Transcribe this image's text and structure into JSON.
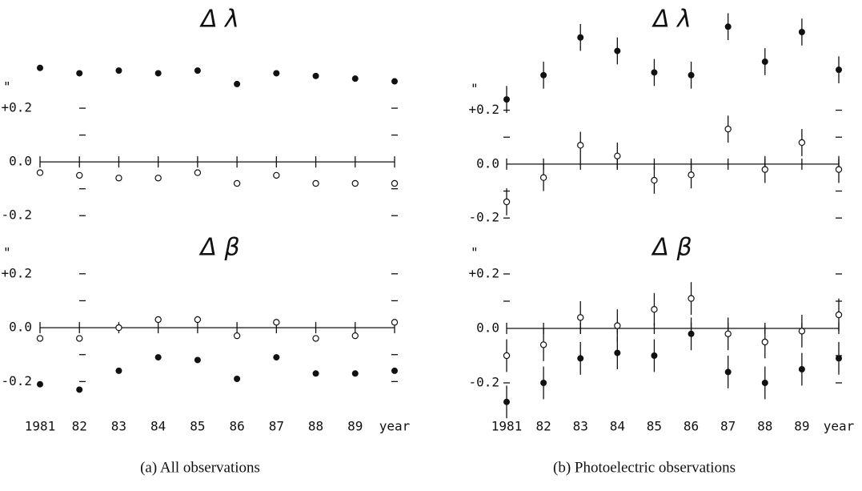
{
  "chart_data": [
    {
      "type": "scatter",
      "title": "Δ λ",
      "yunit": "\"",
      "x": [
        1981,
        1982,
        1983,
        1984,
        1985,
        1986,
        1987,
        1988,
        1989,
        1990
      ],
      "xlim": [
        1981,
        1990
      ],
      "xticks": [
        1981,
        1982,
        1983,
        1984,
        1985,
        1986,
        1987,
        1988,
        1989,
        1990
      ],
      "ylim": [
        -0.25,
        0.4
      ],
      "yticks": [
        -0.2,
        {
          "value": 0,
          "label": "0.0"
        },
        {
          "value": 0.2,
          "label": "+0.2"
        }
      ],
      "minor_yticks": [
        -0.1,
        0.1
      ],
      "series": [
        {
          "marker": "filled",
          "color": "#111",
          "values": [
            0.35,
            0.33,
            0.34,
            0.33,
            0.34,
            0.29,
            0.33,
            0.32,
            0.31,
            0.3
          ]
        },
        {
          "marker": "open",
          "color": "#111",
          "values": [
            -0.04,
            -0.05,
            -0.06,
            -0.06,
            -0.04,
            -0.08,
            -0.05,
            -0.08,
            -0.08,
            -0.08
          ]
        }
      ]
    },
    {
      "type": "scatter",
      "title": "Δ β",
      "yunit": "\"",
      "x": [
        1981,
        1982,
        1983,
        1984,
        1985,
        1986,
        1987,
        1988,
        1989,
        1990
      ],
      "xlim": [
        1981,
        1990
      ],
      "xticks": [
        {
          "value": 1981,
          "label": "1981"
        },
        {
          "value": 1982,
          "label": "82"
        },
        {
          "value": 1983,
          "label": "83"
        },
        {
          "value": 1984,
          "label": "84"
        },
        {
          "value": 1985,
          "label": "85"
        },
        {
          "value": 1986,
          "label": "86"
        },
        {
          "value": 1987,
          "label": "87"
        },
        {
          "value": 1988,
          "label": "88"
        },
        {
          "value": 1989,
          "label": "89"
        },
        {
          "value": 1990,
          "label": "year"
        }
      ],
      "ylim": [
        -0.3,
        0.25
      ],
      "yticks": [
        -0.2,
        {
          "value": 0,
          "label": "0.0"
        },
        {
          "value": 0.2,
          "label": "+0.2"
        }
      ],
      "minor_yticks": [
        -0.1,
        0.1
      ],
      "series": [
        {
          "marker": "open",
          "color": "#111",
          "values": [
            -0.04,
            -0.04,
            0.0,
            0.03,
            0.03,
            -0.03,
            0.02,
            -0.04,
            -0.03,
            0.02
          ]
        },
        {
          "marker": "filled",
          "color": "#111",
          "values": [
            -0.21,
            -0.23,
            -0.16,
            -0.11,
            -0.12,
            -0.19,
            -0.11,
            -0.17,
            -0.17,
            -0.16
          ]
        }
      ]
    },
    {
      "type": "scatter",
      "title": "Δ λ",
      "yunit": "\"",
      "x": [
        1981,
        1982,
        1983,
        1984,
        1985,
        1986,
        1987,
        1988,
        1989,
        1990
      ],
      "xlim": [
        1981,
        1990
      ],
      "xticks": [
        1981,
        1982,
        1983,
        1984,
        1985,
        1986,
        1987,
        1988,
        1989,
        1990
      ],
      "ylim": [
        -0.25,
        0.6
      ],
      "yticks": [
        -0.2,
        {
          "value": 0,
          "label": "0.0"
        },
        {
          "value": 0.2,
          "label": "+0.2"
        }
      ],
      "minor_yticks": [
        -0.1,
        0.1
      ],
      "series": [
        {
          "marker": "filled",
          "color": "#111",
          "values": [
            0.24,
            0.33,
            0.47,
            0.42,
            0.34,
            0.33,
            0.51,
            0.38,
            0.49,
            0.35
          ],
          "errors": [
            0.05,
            0.05,
            0.05,
            0.05,
            0.05,
            0.05,
            0.05,
            0.05,
            0.05,
            0.05
          ]
        },
        {
          "marker": "open",
          "color": "#111",
          "values": [
            -0.14,
            -0.05,
            0.07,
            0.03,
            -0.06,
            -0.04,
            0.13,
            -0.02,
            0.08,
            -0.02
          ],
          "errors": [
            0.05,
            0.05,
            0.05,
            0.05,
            0.05,
            0.05,
            0.05,
            0.05,
            0.05,
            0.05
          ]
        }
      ]
    },
    {
      "type": "scatter",
      "title": "Δ β",
      "yunit": "\"",
      "x": [
        1981,
        1982,
        1983,
        1984,
        1985,
        1986,
        1987,
        1988,
        1989,
        1990
      ],
      "xlim": [
        1981,
        1990
      ],
      "xticks": [
        {
          "value": 1981,
          "label": "1981"
        },
        {
          "value": 1982,
          "label": "82"
        },
        {
          "value": 1983,
          "label": "83"
        },
        {
          "value": 1984,
          "label": "84"
        },
        {
          "value": 1985,
          "label": "85"
        },
        {
          "value": 1986,
          "label": "86"
        },
        {
          "value": 1987,
          "label": "87"
        },
        {
          "value": 1988,
          "label": "88"
        },
        {
          "value": 1989,
          "label": "89"
        },
        {
          "value": 1990,
          "label": "year"
        }
      ],
      "ylim": [
        -0.35,
        0.25
      ],
      "yticks": [
        -0.2,
        {
          "value": 0,
          "label": "0.0"
        },
        {
          "value": 0.2,
          "label": "+0.2"
        }
      ],
      "minor_yticks": [
        -0.1,
        0.1
      ],
      "series": [
        {
          "marker": "open",
          "color": "#111",
          "values": [
            -0.1,
            -0.06,
            0.04,
            0.01,
            0.07,
            0.11,
            -0.02,
            -0.05,
            -0.01,
            0.05
          ],
          "errors": [
            0.06,
            0.06,
            0.06,
            0.06,
            0.06,
            0.06,
            0.06,
            0.06,
            0.06,
            0.06
          ]
        },
        {
          "marker": "filled",
          "color": "#111",
          "values": [
            -0.27,
            -0.2,
            -0.11,
            -0.09,
            -0.1,
            -0.02,
            -0.16,
            -0.2,
            -0.15,
            -0.11
          ],
          "errors": [
            0.06,
            0.06,
            0.06,
            0.06,
            0.06,
            0.06,
            0.06,
            0.06,
            0.06,
            0.06
          ]
        }
      ]
    }
  ],
  "captions": [
    "(a)   All observations",
    "(b)   Photoelectric observations"
  ]
}
